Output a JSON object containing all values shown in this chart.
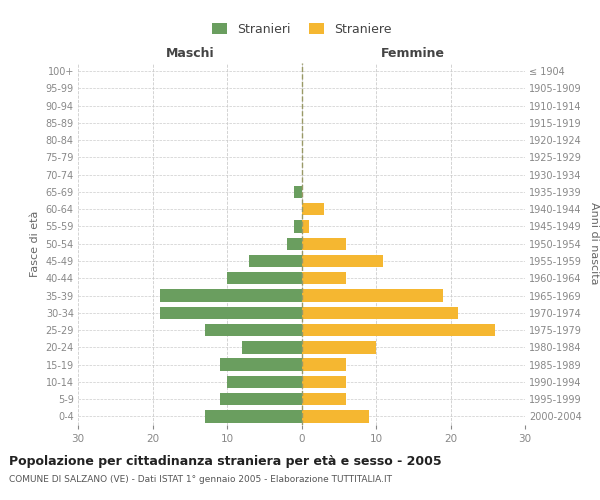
{
  "age_groups_bottom_to_top": [
    "0-4",
    "5-9",
    "10-14",
    "15-19",
    "20-24",
    "25-29",
    "30-34",
    "35-39",
    "40-44",
    "45-49",
    "50-54",
    "55-59",
    "60-64",
    "65-69",
    "70-74",
    "75-79",
    "80-84",
    "85-89",
    "90-94",
    "95-99",
    "100+"
  ],
  "birth_years_bottom_to_top": [
    "2000-2004",
    "1995-1999",
    "1990-1994",
    "1985-1989",
    "1980-1984",
    "1975-1979",
    "1970-1974",
    "1965-1969",
    "1960-1964",
    "1955-1959",
    "1950-1954",
    "1945-1949",
    "1940-1944",
    "1935-1939",
    "1930-1934",
    "1925-1929",
    "1920-1924",
    "1915-1919",
    "1910-1914",
    "1905-1909",
    "≤ 1904"
  ],
  "males_bottom_to_top": [
    13,
    11,
    10,
    11,
    8,
    13,
    19,
    19,
    10,
    7,
    2,
    1,
    0,
    1,
    0,
    0,
    0,
    0,
    0,
    0,
    0
  ],
  "females_bottom_to_top": [
    9,
    6,
    6,
    6,
    10,
    26,
    21,
    19,
    6,
    11,
    6,
    1,
    3,
    0,
    0,
    0,
    0,
    0,
    0,
    0,
    0
  ],
  "male_color": "#6a9e5f",
  "female_color": "#f5b731",
  "xlim": 30,
  "title": "Popolazione per cittadinanza straniera per età e sesso - 2005",
  "subtitle": "COMUNE DI SALZANO (VE) - Dati ISTAT 1° gennaio 2005 - Elaborazione TUTTITALIA.IT",
  "legend_male": "Stranieri",
  "legend_female": "Straniere",
  "ylabel_left": "Fasce di età",
  "ylabel_right": "Anni di nascita",
  "header_left": "Maschi",
  "header_right": "Femmine",
  "bg_color": "#ffffff",
  "grid_color": "#cccccc",
  "zeroline_color": "#999966",
  "tick_color": "#888888",
  "bar_height": 0.72
}
